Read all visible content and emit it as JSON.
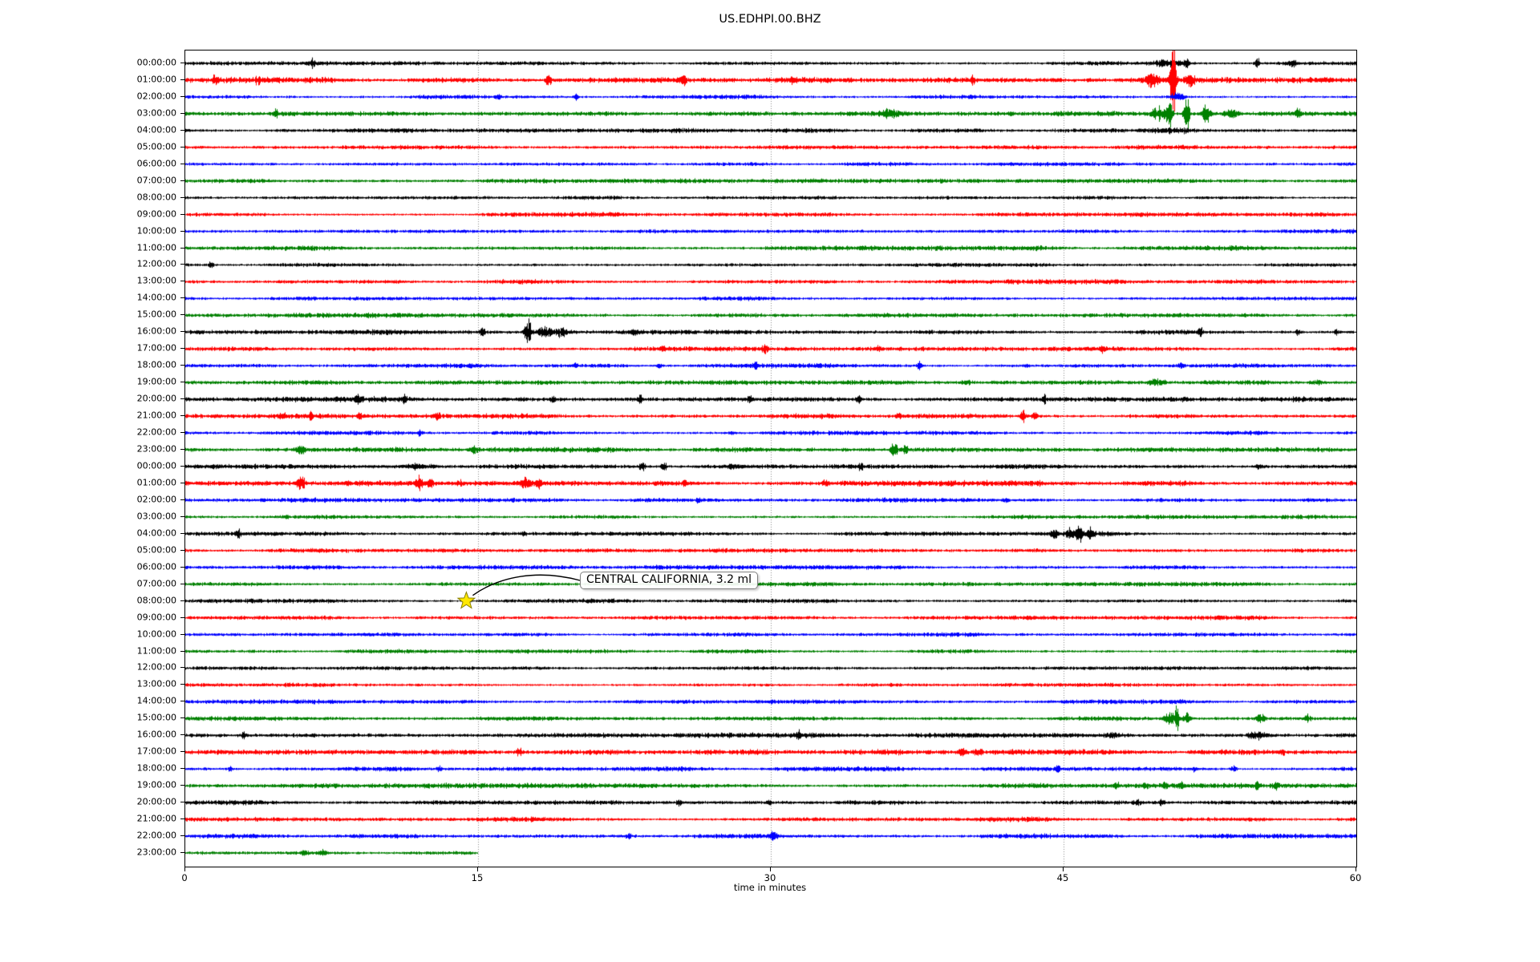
{
  "title": "US.EDHPI.00.BHZ",
  "annotation": {
    "label": "CENTRAL CALIFORNIA, 3.2 ml",
    "row_index": 32,
    "row_label": "08:00:00",
    "minute": 14.4,
    "marker": "star",
    "marker_color": "#ffe800",
    "marker_edge_color": "#8a8000"
  },
  "chart_data": {
    "type": "line",
    "subtype": "helicorder_dayplot",
    "station_id": "US.EDHPI.00.BHZ",
    "title": "US.EDHPI.00.BHZ",
    "xlabel": "time in minutes",
    "x_axis": {
      "min": 0,
      "max": 60,
      "ticks": [
        0,
        15,
        30,
        45,
        60
      ],
      "gridlines": [
        15,
        30,
        45
      ],
      "grid_style": "dotted",
      "grid_color": "#8a8a8a"
    },
    "minutes_per_row": 60,
    "trace_color_cycle": [
      "#000000",
      "#ff0000",
      "#0000ff",
      "#008000"
    ],
    "background_color": "#ffffff",
    "partial_last_row_end_minute": 15,
    "rows": [
      {
        "label": "00:00:00",
        "color": "#000000",
        "noise": 2.0
      },
      {
        "label": "01:00:00",
        "color": "#ff0000",
        "noise": 2.6
      },
      {
        "label": "02:00:00",
        "color": "#0000ff",
        "noise": 2.0
      },
      {
        "label": "03:00:00",
        "color": "#008000",
        "noise": 2.4
      },
      {
        "label": "04:00:00",
        "color": "#000000",
        "noise": 2.0
      },
      {
        "label": "05:00:00",
        "color": "#ff0000",
        "noise": 2.2
      },
      {
        "label": "06:00:00",
        "color": "#0000ff",
        "noise": 2.0
      },
      {
        "label": "07:00:00",
        "color": "#008000",
        "noise": 2.2
      },
      {
        "label": "08:00:00",
        "color": "#000000",
        "noise": 1.7
      },
      {
        "label": "09:00:00",
        "color": "#ff0000",
        "noise": 2.1
      },
      {
        "label": "10:00:00",
        "color": "#0000ff",
        "noise": 2.0
      },
      {
        "label": "11:00:00",
        "color": "#008000",
        "noise": 2.2
      },
      {
        "label": "12:00:00",
        "color": "#000000",
        "noise": 1.8
      },
      {
        "label": "13:00:00",
        "color": "#ff0000",
        "noise": 2.2
      },
      {
        "label": "14:00:00",
        "color": "#0000ff",
        "noise": 2.0
      },
      {
        "label": "15:00:00",
        "color": "#008000",
        "noise": 2.2
      },
      {
        "label": "16:00:00",
        "color": "#000000",
        "noise": 2.3
      },
      {
        "label": "17:00:00",
        "color": "#ff0000",
        "noise": 2.1
      },
      {
        "label": "18:00:00",
        "color": "#0000ff",
        "noise": 2.1
      },
      {
        "label": "19:00:00",
        "color": "#008000",
        "noise": 2.1
      },
      {
        "label": "20:00:00",
        "color": "#000000",
        "noise": 2.4
      },
      {
        "label": "21:00:00",
        "color": "#ff0000",
        "noise": 2.4
      },
      {
        "label": "22:00:00",
        "color": "#0000ff",
        "noise": 2.0
      },
      {
        "label": "23:00:00",
        "color": "#008000",
        "noise": 2.4
      },
      {
        "label": "00:00:00",
        "color": "#000000",
        "noise": 2.3
      },
      {
        "label": "01:00:00",
        "color": "#ff0000",
        "noise": 2.6
      },
      {
        "label": "02:00:00",
        "color": "#0000ff",
        "noise": 2.0
      },
      {
        "label": "03:00:00",
        "color": "#008000",
        "noise": 2.0
      },
      {
        "label": "04:00:00",
        "color": "#000000",
        "noise": 2.1
      },
      {
        "label": "05:00:00",
        "color": "#ff0000",
        "noise": 2.1
      },
      {
        "label": "06:00:00",
        "color": "#0000ff",
        "noise": 2.0
      },
      {
        "label": "07:00:00",
        "color": "#008000",
        "noise": 2.0
      },
      {
        "label": "08:00:00",
        "color": "#000000",
        "noise": 2.0
      },
      {
        "label": "09:00:00",
        "color": "#ff0000",
        "noise": 2.1
      },
      {
        "label": "10:00:00",
        "color": "#0000ff",
        "noise": 1.9
      },
      {
        "label": "11:00:00",
        "color": "#008000",
        "noise": 2.0
      },
      {
        "label": "12:00:00",
        "color": "#000000",
        "noise": 1.8
      },
      {
        "label": "13:00:00",
        "color": "#ff0000",
        "noise": 2.1
      },
      {
        "label": "14:00:00",
        "color": "#0000ff",
        "noise": 2.0
      },
      {
        "label": "15:00:00",
        "color": "#008000",
        "noise": 2.1
      },
      {
        "label": "16:00:00",
        "color": "#000000",
        "noise": 2.3
      },
      {
        "label": "17:00:00",
        "color": "#ff0000",
        "noise": 2.4
      },
      {
        "label": "18:00:00",
        "color": "#0000ff",
        "noise": 2.1
      },
      {
        "label": "19:00:00",
        "color": "#008000",
        "noise": 2.3
      },
      {
        "label": "20:00:00",
        "color": "#000000",
        "noise": 2.3
      },
      {
        "label": "21:00:00",
        "color": "#ff0000",
        "noise": 2.3
      },
      {
        "label": "22:00:00",
        "color": "#0000ff",
        "noise": 2.2
      },
      {
        "label": "23:00:00",
        "color": "#008000",
        "noise": 2.2,
        "end_minute": 15
      }
    ],
    "events": [
      [
        0,
        6.5,
        9,
        0.08
      ],
      [
        0,
        50.4,
        5,
        0.5
      ],
      [
        0,
        51.3,
        11,
        0.08
      ],
      [
        0,
        54.9,
        9,
        0.08
      ],
      [
        0,
        56.7,
        4,
        0.2
      ],
      [
        1,
        1.5,
        5,
        0.1
      ],
      [
        1,
        3.7,
        6,
        0.08
      ],
      [
        1,
        18.6,
        9,
        0.1
      ],
      [
        1,
        25.5,
        7,
        0.12
      ],
      [
        1,
        31.1,
        5,
        0.08
      ],
      [
        1,
        40.3,
        6,
        0.08
      ],
      [
        1,
        49.5,
        10,
        0.2
      ],
      [
        1,
        50.6,
        60,
        0.1
      ],
      [
        1,
        51.5,
        8,
        0.2
      ],
      [
        2,
        16.0,
        4,
        0.08
      ],
      [
        2,
        20.0,
        6,
        0.08
      ],
      [
        2,
        50.8,
        5,
        0.3
      ],
      [
        3,
        4.6,
        5,
        0.1
      ],
      [
        3,
        36.0,
        5,
        0.3
      ],
      [
        3,
        49.9,
        10,
        0.3
      ],
      [
        3,
        50.4,
        26,
        0.1
      ],
      [
        3,
        51.3,
        30,
        0.1
      ],
      [
        3,
        52.3,
        12,
        0.15
      ],
      [
        3,
        53.6,
        8,
        0.2
      ],
      [
        3,
        57.0,
        6,
        0.1
      ],
      [
        4,
        50.5,
        3,
        0.8
      ],
      [
        12,
        1.3,
        5,
        0.08
      ],
      [
        16,
        15.2,
        5,
        0.1
      ],
      [
        16,
        17.55,
        22,
        0.12
      ],
      [
        16,
        18.4,
        9,
        0.25
      ],
      [
        16,
        19.3,
        7,
        0.2
      ],
      [
        16,
        23.0,
        4,
        0.1
      ],
      [
        16,
        52.0,
        5,
        0.1
      ],
      [
        16,
        57.0,
        4,
        0.1
      ],
      [
        16,
        59.0,
        5,
        0.08
      ],
      [
        17,
        24.5,
        4,
        0.08
      ],
      [
        17,
        29.7,
        6,
        0.1
      ],
      [
        17,
        35.5,
        4,
        0.1
      ],
      [
        17,
        47.0,
        4,
        0.1
      ],
      [
        18,
        20.0,
        3,
        0.1
      ],
      [
        18,
        24.3,
        4,
        0.08
      ],
      [
        18,
        29.2,
        4,
        0.1
      ],
      [
        18,
        37.6,
        7,
        0.08
      ],
      [
        18,
        43.0,
        3,
        0.1
      ],
      [
        18,
        51.0,
        4,
        0.1
      ],
      [
        19,
        40.0,
        3,
        0.2
      ],
      [
        19,
        49.8,
        5,
        0.3
      ],
      [
        19,
        58.0,
        3,
        0.2
      ],
      [
        20,
        8.8,
        4,
        0.1
      ],
      [
        20,
        11.2,
        6,
        0.08
      ],
      [
        20,
        18.8,
        5,
        0.08
      ],
      [
        20,
        23.3,
        6,
        0.08
      ],
      [
        20,
        28.9,
        7,
        0.08
      ],
      [
        20,
        34.5,
        6,
        0.08
      ],
      [
        20,
        44.0,
        4,
        0.1
      ],
      [
        21,
        5.0,
        4,
        0.1
      ],
      [
        21,
        6.4,
        6,
        0.08
      ],
      [
        21,
        8.9,
        5,
        0.08
      ],
      [
        21,
        12.9,
        6,
        0.1
      ],
      [
        21,
        36.5,
        5,
        0.1
      ],
      [
        21,
        42.9,
        8,
        0.1
      ],
      [
        21,
        43.5,
        7,
        0.1
      ],
      [
        22,
        12.0,
        4,
        0.1
      ],
      [
        22,
        28.0,
        3,
        0.1
      ],
      [
        23,
        5.9,
        6,
        0.15
      ],
      [
        23,
        14.8,
        4,
        0.15
      ],
      [
        23,
        36.3,
        10,
        0.12
      ],
      [
        23,
        36.9,
        8,
        0.1
      ],
      [
        24,
        12.0,
        3,
        0.5
      ],
      [
        24,
        23.4,
        7,
        0.1
      ],
      [
        24,
        24.5,
        6,
        0.1
      ],
      [
        24,
        28.0,
        4,
        0.1
      ],
      [
        24,
        34.6,
        6,
        0.08
      ],
      [
        24,
        55.0,
        3,
        0.2
      ],
      [
        25,
        5.9,
        10,
        0.15
      ],
      [
        25,
        12.0,
        13,
        0.1
      ],
      [
        25,
        12.5,
        8,
        0.1
      ],
      [
        25,
        14.1,
        4,
        0.08
      ],
      [
        25,
        17.4,
        8,
        0.15
      ],
      [
        25,
        18.1,
        6,
        0.1
      ],
      [
        25,
        25.6,
        6,
        0.08
      ],
      [
        25,
        32.8,
        5,
        0.1
      ],
      [
        26,
        26.3,
        5,
        0.08
      ],
      [
        26,
        42.0,
        3,
        0.1
      ],
      [
        28,
        2.7,
        5,
        0.08
      ],
      [
        28,
        17.3,
        4,
        0.08
      ],
      [
        28,
        44.5,
        6,
        0.15
      ],
      [
        28,
        45.3,
        8,
        0.12
      ],
      [
        28,
        45.8,
        14,
        0.12
      ],
      [
        28,
        46.4,
        7,
        0.15
      ],
      [
        32,
        14.4,
        3,
        0.1
      ],
      [
        39,
        50.4,
        8,
        0.2
      ],
      [
        39,
        50.8,
        20,
        0.08
      ],
      [
        39,
        51.3,
        7,
        0.15
      ],
      [
        39,
        55.1,
        6,
        0.15
      ],
      [
        39,
        57.5,
        5,
        0.1
      ],
      [
        40,
        3.0,
        4,
        0.1
      ],
      [
        40,
        31.4,
        7,
        0.08
      ],
      [
        40,
        47.5,
        4,
        0.2
      ],
      [
        40,
        54.9,
        5,
        0.3
      ],
      [
        41,
        17.1,
        5,
        0.1
      ],
      [
        41,
        39.8,
        6,
        0.12
      ],
      [
        41,
        40.6,
        6,
        0.12
      ],
      [
        41,
        56.2,
        5,
        0.08
      ],
      [
        42,
        2.3,
        4,
        0.08
      ],
      [
        42,
        13.0,
        4,
        0.08
      ],
      [
        42,
        44.7,
        5,
        0.08
      ],
      [
        42,
        51.7,
        4,
        0.1
      ],
      [
        42,
        53.7,
        5,
        0.1
      ],
      [
        43,
        47.7,
        5,
        0.08
      ],
      [
        43,
        49.2,
        4,
        0.1
      ],
      [
        43,
        50.2,
        5,
        0.1
      ],
      [
        43,
        51.0,
        5,
        0.12
      ],
      [
        43,
        54.9,
        6,
        0.08
      ],
      [
        43,
        55.9,
        5,
        0.1
      ],
      [
        44,
        25.3,
        6,
        0.08
      ],
      [
        44,
        29.9,
        6,
        0.08
      ],
      [
        44,
        48.8,
        4,
        0.15
      ],
      [
        44,
        50.0,
        4,
        0.15
      ],
      [
        46,
        22.7,
        5,
        0.08
      ],
      [
        46,
        30.1,
        6,
        0.15
      ],
      [
        47,
        6.1,
        4,
        0.1
      ],
      [
        47,
        7.0,
        4,
        0.1
      ]
    ],
    "annotation": {
      "label": "CENTRAL CALIFORNIA, 3.2 ml",
      "row_index": 32,
      "minute": 14.4
    },
    "legend": null,
    "grid": true
  }
}
